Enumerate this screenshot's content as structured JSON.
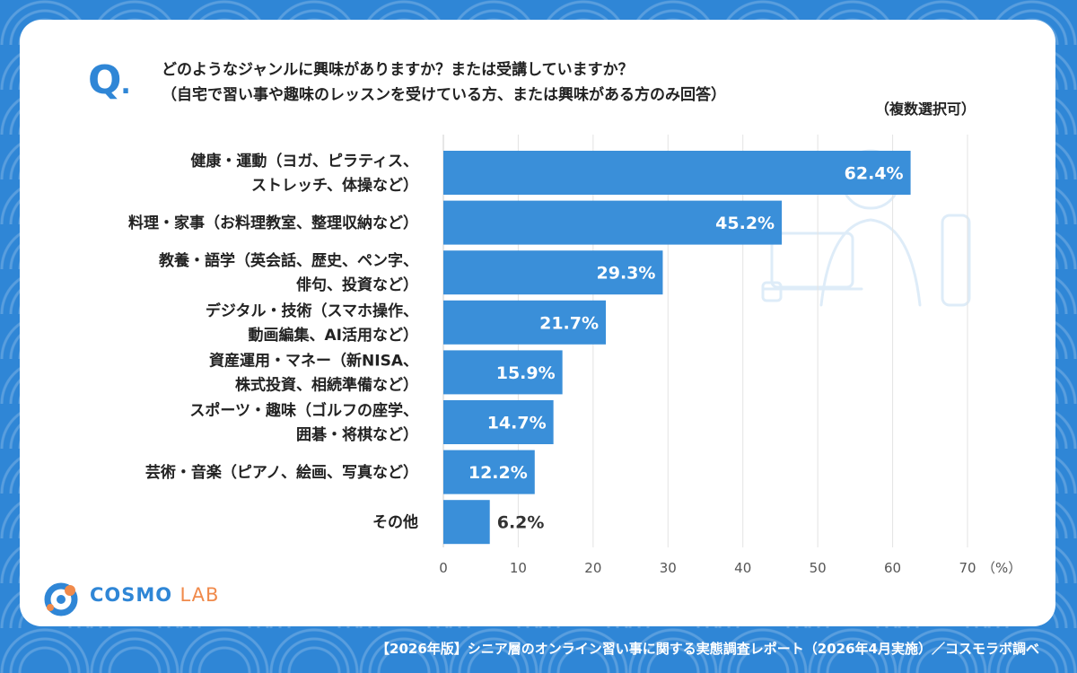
{
  "question": {
    "mark": "Q",
    "mark_dot": ".",
    "line1": "どのようなジャンルに興味がありますか？または受講していますか？",
    "line2": "（自宅で習い事や趣味のレッスンを受けている方、または興味がある方のみ回答）",
    "note": "（複数選択可）"
  },
  "chart_data": {
    "type": "bar",
    "orientation": "horizontal",
    "categories": [
      [
        "健康・運動（ヨガ、ピラティス、",
        "ストレッチ、体操など）"
      ],
      [
        "料理・家事（お料理教室、整理収納など）"
      ],
      [
        "教養・語学（英会話、歴史、ペン字、",
        "俳句、投資など）"
      ],
      [
        "デジタル・技術（スマホ操作、",
        "動画編集、AI活用など）"
      ],
      [
        "資産運用・マネー（新NISA、",
        "株式投資、相続準備など）"
      ],
      [
        "スポーツ・趣味（ゴルフの座学、",
        "囲碁・将棋など）"
      ],
      [
        "芸術・音楽（ピアノ、絵画、写真など）"
      ],
      [
        "その他"
      ]
    ],
    "values": [
      62.4,
      45.2,
      29.3,
      21.7,
      15.9,
      14.7,
      12.2,
      6.2
    ],
    "value_labels": [
      "62.4%",
      "45.2%",
      "29.3%",
      "21.7%",
      "15.9%",
      "14.7%",
      "12.2%",
      "6.2%"
    ],
    "xlim": [
      0,
      70
    ],
    "xticks": [
      "0",
      "10",
      "20",
      "30",
      "40",
      "50",
      "60",
      "70"
    ],
    "xunit": "（%）",
    "grid": true,
    "bar_color": "#3a8fd9"
  },
  "logo": {
    "brand": "COSMO",
    "sub": "LAB"
  },
  "footer": "【2026年版】シニア層のオンライン習い事に関する実態調査レポート（2026年4月実施）／コスモラボ調べ"
}
